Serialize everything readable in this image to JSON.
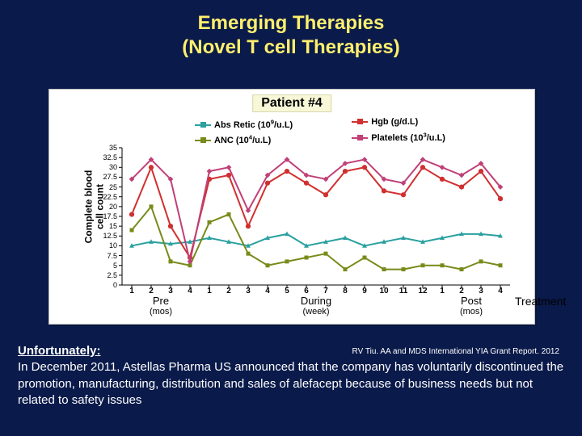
{
  "title": {
    "line1": "Emerging Therapies",
    "line2": "(Novel T cell Therapies)"
  },
  "chart": {
    "type": "line",
    "patient_label": "Patient #4",
    "ylabel": "Complete blood\ncell count",
    "ylim": [
      0,
      35
    ],
    "ytick_step": 2.5,
    "x_categories": [
      "1",
      "2",
      "3",
      "4",
      "1",
      "2",
      "3",
      "4",
      "5",
      "6",
      "7",
      "8",
      "9",
      "10",
      "11",
      "12",
      "1",
      "2",
      "3",
      "4"
    ],
    "phases": [
      {
        "label": "Pre",
        "unit": "(mos)",
        "span": [
          0,
          4
        ]
      },
      {
        "label": "During",
        "unit": "(week)",
        "span": [
          4,
          16
        ]
      },
      {
        "label": "Post",
        "unit": "(mos)",
        "span": [
          16,
          20
        ]
      }
    ],
    "treatment_label": "Treatment",
    "legend": [
      {
        "key": "abs_retic",
        "label_html": "Abs Retic (10<span class='sup'>9</span>/u.L)",
        "color": "#2aa0a0",
        "marker": "triangle"
      },
      {
        "key": "anc",
        "label_html": "ANC (10<span class='sup'>4</span>/u.L)",
        "color": "#7a8a1a",
        "marker": "square"
      },
      {
        "key": "hgb",
        "label_html": "Hgb (g/d.L)",
        "color": "#d03030",
        "marker": "circle"
      },
      {
        "key": "platelets",
        "label_html": "Platelets (10<span class='sup'>3</span>/u.L)",
        "color": "#c04078",
        "marker": "diamond"
      }
    ],
    "series": {
      "abs_retic": [
        10,
        11,
        10.5,
        11,
        12,
        11,
        10,
        12,
        13,
        10,
        11,
        12,
        10,
        11,
        12,
        11,
        12,
        13,
        13,
        12.5
      ],
      "anc": [
        14,
        20,
        6,
        5,
        16,
        18,
        8,
        5,
        6,
        7,
        8,
        4,
        7,
        4,
        4,
        5,
        5,
        4,
        6,
        5
      ],
      "hgb": [
        18,
        30,
        15,
        7,
        27,
        28,
        15,
        26,
        29,
        26,
        23,
        29,
        30,
        24,
        23,
        30,
        27,
        25,
        29,
        22
      ],
      "platelets": [
        27,
        32,
        27,
        6,
        29,
        30,
        19,
        28,
        32,
        28,
        27,
        31,
        32,
        27,
        26,
        32,
        30,
        28,
        31,
        25
      ]
    },
    "marker_size": 5,
    "line_width": 2,
    "background_color": "#ffffff",
    "axis_color": "#000000",
    "label_fontsize": 12,
    "tick_fontsize": 9
  },
  "bottom": {
    "unfortunately": "Unfortunately:",
    "text": "In December 2011, Astellas Pharma US announced that the company has voluntarily discontinued the promotion, manufacturing, distribution and sales of alefacept because of business needs but not related to safety issues",
    "citation": "RV Tiu. AA and MDS International YIA Grant Report. 2012"
  }
}
